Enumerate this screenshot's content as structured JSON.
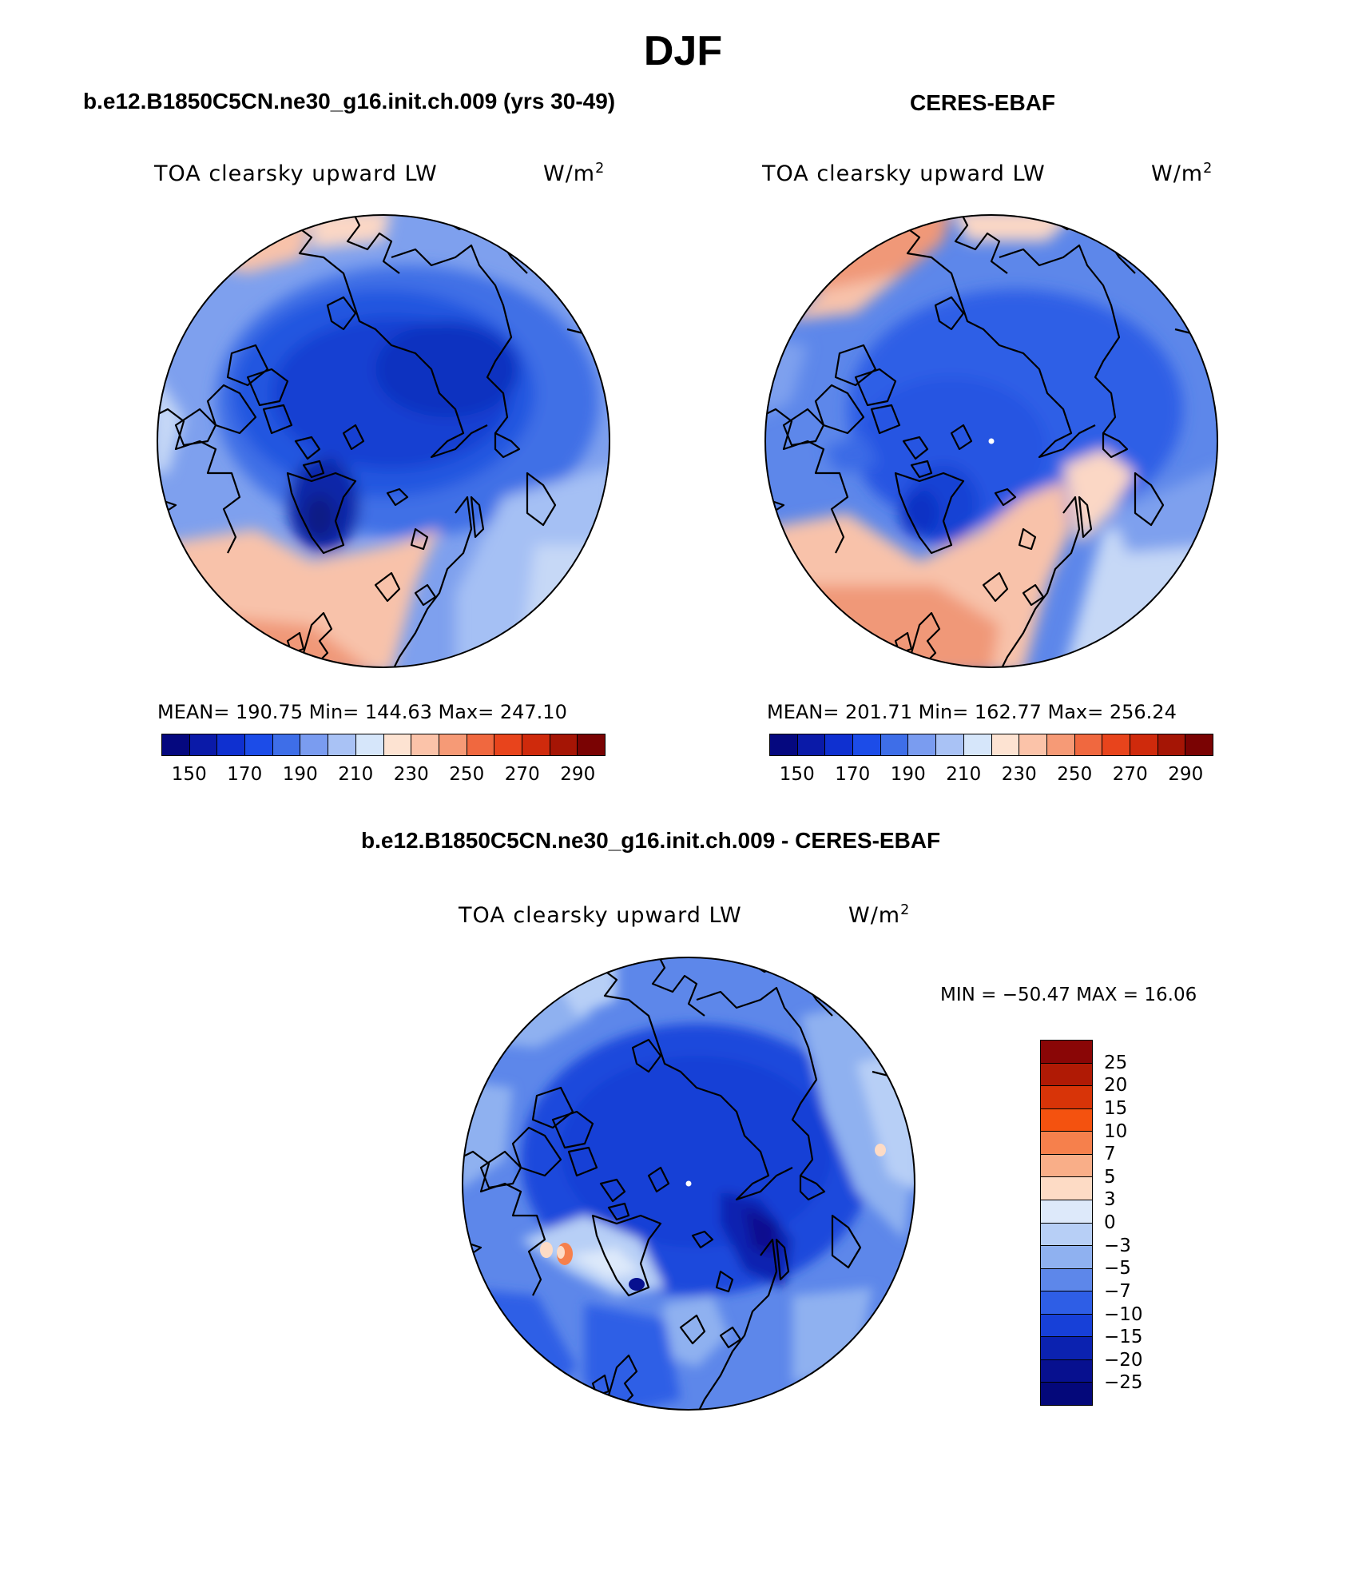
{
  "title": "DJF",
  "panels": [
    {
      "case_title": "b.e12.B1850C5CN.ne30_g16.init.ch.009 (yrs 30-49)",
      "variable": "TOA clearsky upward LW",
      "units_base": "W/m",
      "units_exp": "2",
      "stats": "MEAN= 190.75   Min= 144.63   Max= 247.10"
    },
    {
      "case_title": "CERES-EBAF",
      "variable": "TOA clearsky upward LW",
      "units_base": "W/m",
      "units_exp": "2",
      "stats": "MEAN= 201.71   Min= 162.77   Max= 256.24"
    }
  ],
  "abs_colorbar": {
    "colors": [
      "#05087f",
      "#0a1aa8",
      "#0f30d0",
      "#1c4ce8",
      "#3e6ee8",
      "#7a9cf0",
      "#a9c2f5",
      "#d6e6fa",
      "#fde3d2",
      "#fbc3a9",
      "#f69a76",
      "#f0683f",
      "#e8441c",
      "#cf2a0c",
      "#a51505",
      "#7a0303"
    ],
    "ticks": [
      "150",
      "170",
      "190",
      "210",
      "230",
      "250",
      "270",
      "290"
    ]
  },
  "diff": {
    "title": "b.e12.B1850C5CN.ne30_g16.init.ch.009 - CERES-EBAF",
    "variable": "TOA clearsky upward LW",
    "units_base": "W/m",
    "units_exp": "2",
    "minmax": "MIN = −50.47 MAX =   16.06",
    "colorbar": {
      "colors": [
        "#8a0606",
        "#b01a05",
        "#d83408",
        "#f4520f",
        "#f6804c",
        "#f9ae88",
        "#fddbc5",
        "#dde9fa",
        "#b7cff6",
        "#8fb1f0",
        "#5d87ea",
        "#2e5ee6",
        "#1740d8",
        "#0b22b0",
        "#07108f",
        "#04087a"
      ],
      "labels": [
        "25",
        "20",
        "15",
        "10",
        "7",
        "5",
        "3",
        "0",
        "−3",
        "−5",
        "−7",
        "−10",
        "−15",
        "−20",
        "−25"
      ]
    }
  },
  "map_field_colors": {
    "deep": "#1540d4",
    "darkest": "#0a20a0",
    "mid": "#2f63e6",
    "light": "#7ea0ee",
    "pale": "#c6d8f6",
    "warm_pale": "#f8c2aa",
    "warm": "#f08a66",
    "warm_strong": "#e45a30"
  },
  "map_icons": [
    "polar-map-model",
    "polar-map-obs",
    "polar-map-diff"
  ]
}
